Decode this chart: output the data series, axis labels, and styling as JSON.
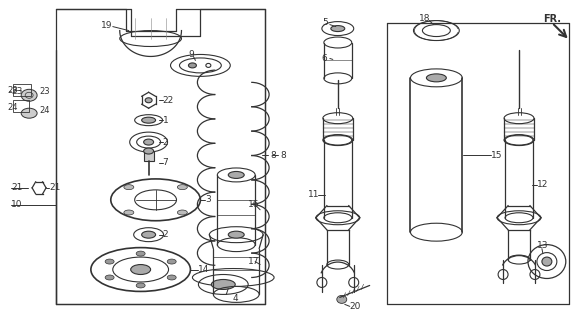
{
  "bg_color": "#ffffff",
  "line_color": "#333333",
  "fig_width": 5.83,
  "fig_height": 3.2,
  "dpi": 100
}
